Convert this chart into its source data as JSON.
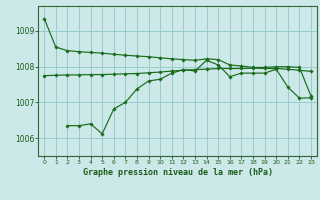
{
  "title": "Graphe pression niveau de la mer (hPa)",
  "bg_color": "#cce8e8",
  "grid_color": "#99cccc",
  "line_color": "#1a6b1a",
  "ylim": [
    1005.5,
    1009.7
  ],
  "xlim": [
    -0.5,
    23.5
  ],
  "yticks": [
    1006,
    1007,
    1008,
    1009
  ],
  "xticks": [
    0,
    1,
    2,
    3,
    4,
    5,
    6,
    7,
    8,
    9,
    10,
    11,
    12,
    13,
    14,
    15,
    16,
    17,
    18,
    19,
    20,
    21,
    22,
    23
  ],
  "line1_x": [
    0,
    1,
    2,
    3,
    4,
    5,
    6,
    7,
    8,
    9,
    10,
    11,
    12,
    13,
    14,
    15,
    16,
    17,
    18,
    19,
    20,
    21,
    22,
    23
  ],
  "line1_y": [
    1009.35,
    1008.55,
    1008.45,
    1008.42,
    1008.4,
    1008.38,
    1008.35,
    1008.32,
    1008.3,
    1008.28,
    1008.25,
    1008.22,
    1008.2,
    1008.18,
    1008.22,
    1008.2,
    1008.05,
    1008.02,
    1007.98,
    1007.98,
    1008.0,
    1008.0,
    1007.98,
    1007.18
  ],
  "line2_x": [
    0,
    1,
    2,
    3,
    4,
    5,
    6,
    7,
    8,
    9,
    10,
    11,
    12,
    13,
    14,
    15,
    16,
    17,
    18,
    19,
    20,
    21,
    22,
    23
  ],
  "line2_y": [
    1007.75,
    1007.76,
    1007.77,
    1007.77,
    1007.78,
    1007.78,
    1007.79,
    1007.8,
    1007.81,
    1007.83,
    1007.85,
    1007.88,
    1007.9,
    1007.92,
    1007.93,
    1007.95,
    1007.95,
    1007.95,
    1007.96,
    1007.95,
    1007.95,
    1007.93,
    1007.9,
    1007.87
  ],
  "line3_x": [
    2,
    3,
    4,
    5,
    6,
    7,
    8,
    9,
    10,
    11,
    12,
    13,
    14,
    15,
    16,
    17,
    18,
    19,
    20,
    21,
    22,
    23
  ],
  "line3_y": [
    1006.35,
    1006.35,
    1006.4,
    1006.12,
    1006.82,
    1007.0,
    1007.38,
    1007.6,
    1007.65,
    1007.82,
    1007.92,
    1007.88,
    1008.18,
    1008.05,
    1007.72,
    1007.82,
    1007.82,
    1007.82,
    1007.93,
    1007.43,
    1007.12,
    1007.13
  ]
}
